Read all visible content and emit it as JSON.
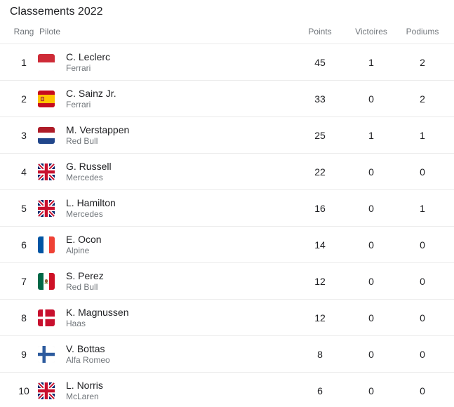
{
  "title": "Classements 2022",
  "table": {
    "headers": {
      "rank": "Rang",
      "pilot": "Pilote",
      "points": "Points",
      "victories": "Victoires",
      "podiums": "Podiums"
    },
    "rows": [
      {
        "rank": "1",
        "driver": "C. Leclerc",
        "team": "Ferrari",
        "flag": "monaco",
        "points": "45",
        "victories": "1",
        "podiums": "2"
      },
      {
        "rank": "2",
        "driver": "C. Sainz Jr.",
        "team": "Ferrari",
        "flag": "spain",
        "points": "33",
        "victories": "0",
        "podiums": "2"
      },
      {
        "rank": "3",
        "driver": "M. Verstappen",
        "team": "Red Bull",
        "flag": "netherlands",
        "points": "25",
        "victories": "1",
        "podiums": "1"
      },
      {
        "rank": "4",
        "driver": "G. Russell",
        "team": "Mercedes",
        "flag": "uk",
        "points": "22",
        "victories": "0",
        "podiums": "0"
      },
      {
        "rank": "5",
        "driver": "L. Hamilton",
        "team": "Mercedes",
        "flag": "uk",
        "points": "16",
        "victories": "0",
        "podiums": "1"
      },
      {
        "rank": "6",
        "driver": "E. Ocon",
        "team": "Alpine",
        "flag": "france",
        "points": "14",
        "victories": "0",
        "podiums": "0"
      },
      {
        "rank": "7",
        "driver": "S. Perez",
        "team": "Red Bull",
        "flag": "mexico",
        "points": "12",
        "victories": "0",
        "podiums": "0"
      },
      {
        "rank": "8",
        "driver": "K. Magnussen",
        "team": "Haas",
        "flag": "denmark",
        "points": "12",
        "victories": "0",
        "podiums": "0"
      },
      {
        "rank": "9",
        "driver": "V. Bottas",
        "team": "Alfa Romeo",
        "flag": "finland",
        "points": "8",
        "victories": "0",
        "podiums": "0"
      },
      {
        "rank": "10",
        "driver": "L. Norris",
        "team": "McLaren",
        "flag": "uk",
        "points": "6",
        "victories": "0",
        "podiums": "0"
      }
    ]
  },
  "colors": {
    "text_primary": "#202124",
    "text_secondary": "#70757a",
    "separator": "#ebebeb",
    "background": "#ffffff"
  }
}
